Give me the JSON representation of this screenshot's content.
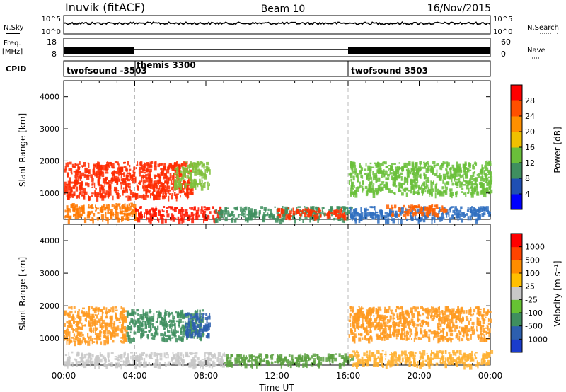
{
  "header": {
    "station": "Inuvik (fitACF)",
    "beam": "Beam 10",
    "date": "16/Nov/2015"
  },
  "status_panels": {
    "nsky_label": "N.Sky",
    "nsky_ticks": [
      "10^5",
      "10^0"
    ],
    "nsearch_label": "N.Search",
    "nsearch_ticks": [
      "10^5",
      "10^0"
    ],
    "freq_label": "Freq.",
    "freq_unit": "[MHz]",
    "freq_ticks": [
      "18",
      "8"
    ],
    "nave_label": "Nave",
    "nave_ticks": [
      "60",
      "0"
    ],
    "cpid_label": "CPID",
    "cpid_segments": [
      {
        "start_hour": 0,
        "end_hour": 4,
        "label": "twofsound -3503"
      },
      {
        "start_hour": 4,
        "end_hour": 16,
        "label": "themis 3300"
      },
      {
        "start_hour": 16,
        "end_hour": 24,
        "label": "twofsound 3503"
      }
    ]
  },
  "chart_data": [
    {
      "type": "heatmap",
      "name": "power-panel",
      "ylabel": "Slant Range [km]",
      "ylim": [
        180,
        4500
      ],
      "yticks": [
        1000,
        2000,
        3000,
        4000
      ],
      "xlim": [
        0,
        24
      ],
      "colorbar": {
        "label": "Power [dB]",
        "ticks": [
          "4",
          "8",
          "12",
          "16",
          "20",
          "24",
          "28"
        ],
        "colors": [
          "#0000ff",
          "#1f4fb3",
          "#3f8f5f",
          "#6abf3a",
          "#f0c000",
          "#ff9000",
          "#ff5000",
          "#ff0000"
        ]
      },
      "regions": [
        {
          "x": [
            0.0,
            7.2
          ],
          "y": [
            900,
            2000
          ],
          "color": "#ff2a00"
        },
        {
          "x": [
            0.0,
            4.0
          ],
          "y": [
            200,
            700
          ],
          "color": "#ff7800"
        },
        {
          "x": [
            4.0,
            8.8
          ],
          "y": [
            200,
            600
          ],
          "color": "#ff1800"
        },
        {
          "x": [
            6.2,
            8.2
          ],
          "y": [
            1200,
            2000
          ],
          "color": "#7fbf3a"
        },
        {
          "x": [
            8.5,
            16.2
          ],
          "y": [
            200,
            600
          ],
          "color": "#3f8f5f"
        },
        {
          "x": [
            12.0,
            15.8
          ],
          "y": [
            300,
            550
          ],
          "color": "#ff3000"
        },
        {
          "x": [
            16.0,
            24.0
          ],
          "y": [
            1000,
            2000
          ],
          "color": "#6abf3a"
        },
        {
          "x": [
            16.0,
            24.0
          ],
          "y": [
            200,
            600
          ],
          "color": "#2f6fbf"
        },
        {
          "x": [
            18.0,
            21.5
          ],
          "y": [
            350,
            650
          ],
          "color": "#ff6000"
        }
      ]
    },
    {
      "type": "heatmap",
      "name": "velocity-panel",
      "ylabel": "Slant Range [km]",
      "ylim": [
        180,
        4500
      ],
      "yticks": [
        1000,
        2000,
        3000,
        4000
      ],
      "xlim": [
        0,
        24
      ],
      "xticks": [
        "00:00",
        "04:00",
        "08:00",
        "12:00",
        "16:00",
        "20:00",
        "00:00"
      ],
      "xlabel": "Time UT",
      "colorbar": {
        "label": "Velocity [m s⁻¹]",
        "ticks": [
          "1000",
          "500",
          "100",
          "25",
          "-25",
          "-100",
          "-500",
          "-1000"
        ],
        "colors": [
          "#1a3ccc",
          "#2d5fae",
          "#3f8f5f",
          "#66c233",
          "#c8c8c8",
          "#ffbf00",
          "#ff8c00",
          "#ff4400",
          "#ff0000"
        ]
      },
      "regions": [
        {
          "x": [
            0.0,
            3.5
          ],
          "y": [
            900,
            2000
          ],
          "color": "#ff9a20"
        },
        {
          "x": [
            3.5,
            7.8
          ],
          "y": [
            1000,
            1900
          ],
          "color": "#3f8f5f"
        },
        {
          "x": [
            6.8,
            8.2
          ],
          "y": [
            1100,
            1800
          ],
          "color": "#2d5fae"
        },
        {
          "x": [
            0.0,
            9.0
          ],
          "y": [
            200,
            600
          ],
          "color": "#c8c8c8"
        },
        {
          "x": [
            9.0,
            16.2
          ],
          "y": [
            200,
            550
          ],
          "color": "#5aa040"
        },
        {
          "x": [
            16.0,
            24.0
          ],
          "y": [
            1000,
            2000
          ],
          "color": "#ff9a20"
        },
        {
          "x": [
            16.0,
            24.0
          ],
          "y": [
            200,
            650
          ],
          "color": "#ffb030"
        }
      ]
    }
  ]
}
